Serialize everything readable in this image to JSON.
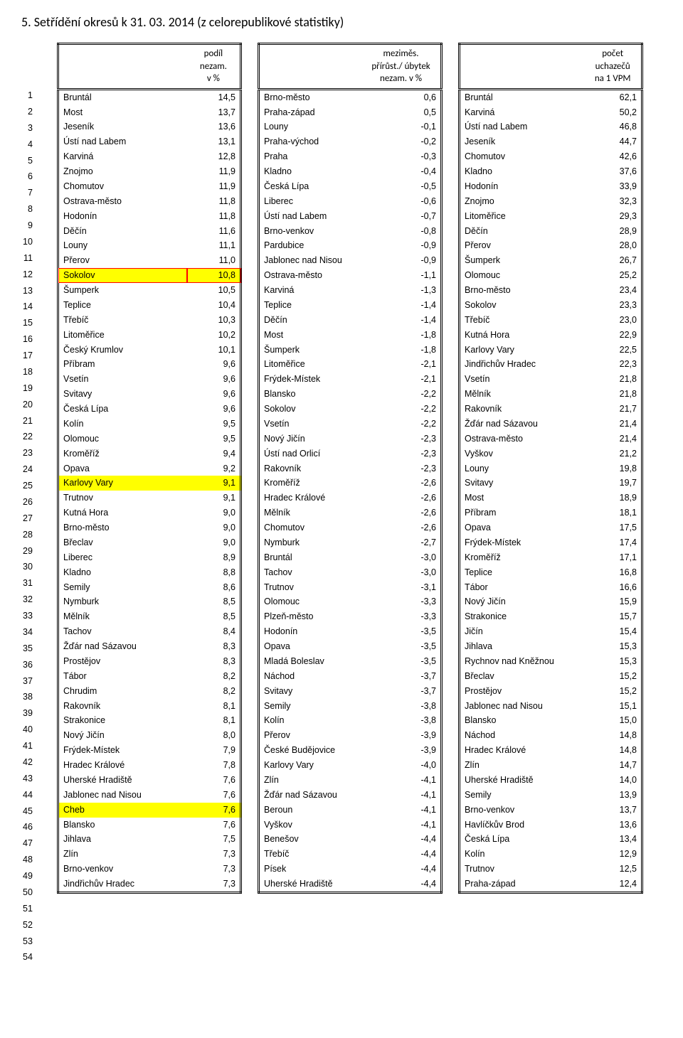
{
  "title": "5. Setřídění okresů k 31. 03. 2014 (z celorepublikové statistiky)",
  "headers": {
    "a1": "podíl",
    "a2": "nezam.",
    "a3": "v %",
    "b1": "meziměs.",
    "b2": "přírůst./ úbytek",
    "b3": "nezam. v %",
    "c1": "počet",
    "c2": "uchazečů",
    "c3": "na 1 VPM"
  },
  "highlight_color": "#ffff00",
  "outline_color": "#ff0000",
  "rows": [
    {
      "i": 1,
      "aN": "Bruntál",
      "aV": "14,5",
      "bN": "Brno-město",
      "bV": "0,6",
      "cN": "Bruntál",
      "cV": "62,1"
    },
    {
      "i": 2,
      "aN": "Most",
      "aV": "13,7",
      "bN": "Praha-západ",
      "bV": "0,5",
      "cN": "Karviná",
      "cV": "50,2"
    },
    {
      "i": 3,
      "aN": "Jeseník",
      "aV": "13,6",
      "bN": "Louny",
      "bV": "-0,1",
      "cN": "Ústí nad Labem",
      "cV": "46,8"
    },
    {
      "i": 4,
      "aN": "Ústí nad Labem",
      "aV": "13,1",
      "bN": "Praha-východ",
      "bV": "-0,2",
      "cN": "Jeseník",
      "cV": "44,7"
    },
    {
      "i": 5,
      "aN": "Karviná",
      "aV": "12,8",
      "bN": "Praha",
      "bV": "-0,3",
      "cN": "Chomutov",
      "cV": "42,6"
    },
    {
      "i": 6,
      "aN": "Znojmo",
      "aV": "11,9",
      "bN": "Kladno",
      "bV": "-0,4",
      "cN": "Kladno",
      "cV": "37,6"
    },
    {
      "i": 7,
      "aN": "Chomutov",
      "aV": "11,9",
      "bN": "Česká Lípa",
      "bV": "-0,5",
      "cN": "Hodonín",
      "cV": "33,9"
    },
    {
      "i": 8,
      "aN": "Ostrava-město",
      "aV": "11,8",
      "bN": "Liberec",
      "bV": "-0,6",
      "cN": "Znojmo",
      "cV": "32,3"
    },
    {
      "i": 9,
      "aN": "Hodonín",
      "aV": "11,8",
      "bN": "Ústí nad Labem",
      "bV": "-0,7",
      "cN": "Litoměřice",
      "cV": "29,3"
    },
    {
      "i": 10,
      "aN": "Děčín",
      "aV": "11,6",
      "bN": "Brno-venkov",
      "bV": "-0,8",
      "cN": "Děčín",
      "cV": "28,9"
    },
    {
      "i": 11,
      "aN": "Louny",
      "aV": "11,1",
      "bN": "Pardubice",
      "bV": "-0,9",
      "cN": "Přerov",
      "cV": "28,0"
    },
    {
      "i": 12,
      "aN": "Přerov",
      "aV": "11,0",
      "bN": "Jablonec nad Nisou",
      "bV": "-0,9",
      "cN": "Šumperk",
      "cV": "26,7"
    },
    {
      "i": 13,
      "aN": "Sokolov",
      "aV": "10,8",
      "bN": "Ostrava-město",
      "bV": "-1,1",
      "cN": "Olomouc",
      "cV": "25,2",
      "hlA": "red-yellow"
    },
    {
      "i": 14,
      "aN": "Šumperk",
      "aV": "10,5",
      "bN": "Karviná",
      "bV": "-1,3",
      "cN": "Brno-město",
      "cV": "23,4"
    },
    {
      "i": 15,
      "aN": "Teplice",
      "aV": "10,4",
      "bN": "Teplice",
      "bV": "-1,4",
      "cN": "Sokolov",
      "cV": "23,3"
    },
    {
      "i": 16,
      "aN": "Třebíč",
      "aV": "10,3",
      "bN": "Děčín",
      "bV": "-1,4",
      "cN": "Třebíč",
      "cV": "23,0"
    },
    {
      "i": 17,
      "aN": "Litoměřice",
      "aV": "10,2",
      "bN": "Most",
      "bV": "-1,8",
      "cN": "Kutná Hora",
      "cV": "22,9"
    },
    {
      "i": 18,
      "aN": "Český Krumlov",
      "aV": "10,1",
      "bN": "Šumperk",
      "bV": "-1,8",
      "cN": "Karlovy Vary",
      "cV": "22,5"
    },
    {
      "i": 19,
      "aN": "Příbram",
      "aV": "9,6",
      "bN": "Litoměřice",
      "bV": "-2,1",
      "cN": "Jindřichův Hradec",
      "cV": "22,3"
    },
    {
      "i": 20,
      "aN": "Vsetín",
      "aV": "9,6",
      "bN": "Frýdek-Místek",
      "bV": "-2,1",
      "cN": "Vsetín",
      "cV": "21,8"
    },
    {
      "i": 21,
      "aN": "Svitavy",
      "aV": "9,6",
      "bN": "Blansko",
      "bV": "-2,2",
      "cN": "Mělník",
      "cV": "21,8"
    },
    {
      "i": 22,
      "aN": "Česká Lípa",
      "aV": "9,6",
      "bN": "Sokolov",
      "bV": "-2,2",
      "cN": "Rakovník",
      "cV": "21,7"
    },
    {
      "i": 23,
      "aN": "Kolín",
      "aV": "9,5",
      "bN": "Vsetín",
      "bV": "-2,2",
      "cN": "Žďár nad Sázavou",
      "cV": "21,4"
    },
    {
      "i": 24,
      "aN": "Olomouc",
      "aV": "9,5",
      "bN": "Nový Jičín",
      "bV": "-2,3",
      "cN": "Ostrava-město",
      "cV": "21,4"
    },
    {
      "i": 25,
      "aN": "Kroměříž",
      "aV": "9,4",
      "bN": "Ústí nad Orlicí",
      "bV": "-2,3",
      "cN": "Vyškov",
      "cV": "21,2"
    },
    {
      "i": 26,
      "aN": "Opava",
      "aV": "9,2",
      "bN": "Rakovník",
      "bV": "-2,3",
      "cN": "Louny",
      "cV": "19,8"
    },
    {
      "i": 27,
      "aN": "Karlovy Vary",
      "aV": "9,1",
      "bN": "Kroměříž",
      "bV": "-2,6",
      "cN": "Svitavy",
      "cV": "19,7",
      "hlA": "yellow"
    },
    {
      "i": 28,
      "aN": "Trutnov",
      "aV": "9,1",
      "bN": "Hradec Králové",
      "bV": "-2,6",
      "cN": "Most",
      "cV": "18,9"
    },
    {
      "i": 29,
      "aN": "Kutná Hora",
      "aV": "9,0",
      "bN": "Mělník",
      "bV": "-2,6",
      "cN": "Příbram",
      "cV": "18,1"
    },
    {
      "i": 30,
      "aN": "Brno-město",
      "aV": "9,0",
      "bN": "Chomutov",
      "bV": "-2,6",
      "cN": "Opava",
      "cV": "17,5"
    },
    {
      "i": 31,
      "aN": "Břeclav",
      "aV": "9,0",
      "bN": "Nymburk",
      "bV": "-2,7",
      "cN": "Frýdek-Místek",
      "cV": "17,4"
    },
    {
      "i": 32,
      "aN": "Liberec",
      "aV": "8,9",
      "bN": "Bruntál",
      "bV": "-3,0",
      "cN": "Kroměříž",
      "cV": "17,1"
    },
    {
      "i": 33,
      "aN": "Kladno",
      "aV": "8,8",
      "bN": "Tachov",
      "bV": "-3,0",
      "cN": "Teplice",
      "cV": "16,8"
    },
    {
      "i": 34,
      "aN": "Semily",
      "aV": "8,6",
      "bN": "Trutnov",
      "bV": "-3,1",
      "cN": "Tábor",
      "cV": "16,6"
    },
    {
      "i": 35,
      "aN": "Nymburk",
      "aV": "8,5",
      "bN": "Olomouc",
      "bV": "-3,3",
      "cN": "Nový Jičín",
      "cV": "15,9"
    },
    {
      "i": 36,
      "aN": "Mělník",
      "aV": "8,5",
      "bN": "Plzeň-město",
      "bV": "-3,3",
      "cN": "Strakonice",
      "cV": "15,7"
    },
    {
      "i": 37,
      "aN": "Tachov",
      "aV": "8,4",
      "bN": "Hodonín",
      "bV": "-3,5",
      "cN": "Jičín",
      "cV": "15,4"
    },
    {
      "i": 38,
      "aN": "Žďár nad Sázavou",
      "aV": "8,3",
      "bN": "Opava",
      "bV": "-3,5",
      "cN": "Jihlava",
      "cV": "15,3"
    },
    {
      "i": 39,
      "aN": "Prostějov",
      "aV": "8,3",
      "bN": "Mladá Boleslav",
      "bV": "-3,5",
      "cN": "Rychnov nad Kněžnou",
      "cV": "15,3"
    },
    {
      "i": 40,
      "aN": "Tábor",
      "aV": "8,2",
      "bN": "Náchod",
      "bV": "-3,7",
      "cN": "Břeclav",
      "cV": "15,2"
    },
    {
      "i": 41,
      "aN": "Chrudim",
      "aV": "8,2",
      "bN": "Svitavy",
      "bV": "-3,7",
      "cN": "Prostějov",
      "cV": "15,2"
    },
    {
      "i": 42,
      "aN": "Rakovník",
      "aV": "8,1",
      "bN": "Semily",
      "bV": "-3,8",
      "cN": "Jablonec nad Nisou",
      "cV": "15,1"
    },
    {
      "i": 43,
      "aN": "Strakonice",
      "aV": "8,1",
      "bN": "Kolín",
      "bV": "-3,8",
      "cN": "Blansko",
      "cV": "15,0"
    },
    {
      "i": 44,
      "aN": "Nový Jičín",
      "aV": "8,0",
      "bN": "Přerov",
      "bV": "-3,9",
      "cN": "Náchod",
      "cV": "14,8"
    },
    {
      "i": 45,
      "aN": "Frýdek-Místek",
      "aV": "7,9",
      "bN": "České Budějovice",
      "bV": "-3,9",
      "cN": "Hradec Králové",
      "cV": "14,8"
    },
    {
      "i": 46,
      "aN": "Hradec Králové",
      "aV": "7,8",
      "bN": "Karlovy Vary",
      "bV": "-4,0",
      "cN": "Zlín",
      "cV": "14,7"
    },
    {
      "i": 47,
      "aN": "Uherské Hradiště",
      "aV": "7,6",
      "bN": "Zlín",
      "bV": "-4,1",
      "cN": "Uherské Hradiště",
      "cV": "14,0"
    },
    {
      "i": 48,
      "aN": "Jablonec nad Nisou",
      "aV": "7,6",
      "bN": "Žďár nad Sázavou",
      "bV": "-4,1",
      "cN": "Semily",
      "cV": "13,9"
    },
    {
      "i": 49,
      "aN": "Cheb",
      "aV": "7,6",
      "bN": "Beroun",
      "bV": "-4,1",
      "cN": "Brno-venkov",
      "cV": "13,7",
      "hlA": "yellow"
    },
    {
      "i": 50,
      "aN": "Blansko",
      "aV": "7,6",
      "bN": "Vyškov",
      "bV": "-4,1",
      "cN": "Havlíčkův Brod",
      "cV": "13,6"
    },
    {
      "i": 51,
      "aN": "Jihlava",
      "aV": "7,5",
      "bN": "Benešov",
      "bV": "-4,4",
      "cN": "Česká Lípa",
      "cV": "13,4"
    },
    {
      "i": 52,
      "aN": "Zlín",
      "aV": "7,3",
      "bN": "Třebíč",
      "bV": "-4,4",
      "cN": "Kolín",
      "cV": "12,9"
    },
    {
      "i": 53,
      "aN": "Brno-venkov",
      "aV": "7,3",
      "bN": "Písek",
      "bV": "-4,4",
      "cN": "Trutnov",
      "cV": "12,5"
    },
    {
      "i": 54,
      "aN": "Jindřichův Hradec",
      "aV": "7,3",
      "bN": "Uherské Hradiště",
      "bV": "-4,4",
      "cN": "Praha-západ",
      "cV": "12,4"
    }
  ]
}
